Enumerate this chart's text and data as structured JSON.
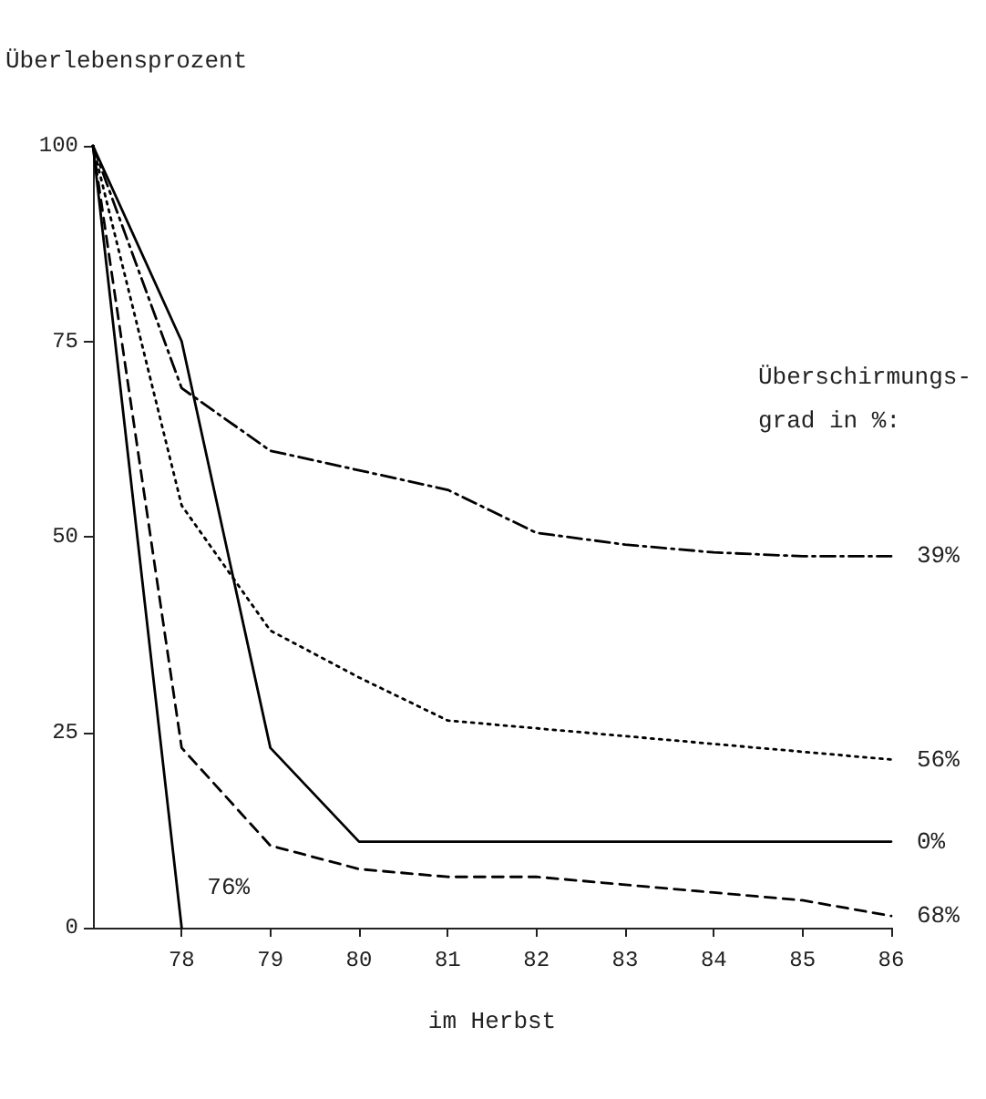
{
  "chart_data": {
    "type": "line",
    "ylabel": "Überlebensprozent",
    "xlabel": "im Herbst",
    "legend_title": "Überschirmungs-\ngrad in %:",
    "x": [
      77,
      78,
      79,
      80,
      81,
      82,
      83,
      84,
      85,
      86
    ],
    "series": [
      {
        "name": "39%",
        "color": "#000000",
        "line_style": "dashdot",
        "values": [
          100,
          69,
          61,
          58.5,
          56,
          50.5,
          49,
          48,
          47.5,
          47.5
        ]
      },
      {
        "name": "56%",
        "color": "#000000",
        "line_style": "dotted",
        "values": [
          100,
          54,
          38,
          32,
          26.5,
          25.5,
          24.5,
          23.5,
          22.5,
          21.5
        ]
      },
      {
        "name": "0%",
        "color": "#000000",
        "line_style": "solid",
        "values": [
          100,
          75,
          23,
          11,
          11,
          11,
          11,
          11,
          11,
          11
        ]
      },
      {
        "name": "68%",
        "color": "#000000",
        "line_style": "dashed",
        "values": [
          100,
          23,
          10.5,
          7.5,
          6.5,
          6.5,
          5.5,
          4.5,
          3.5,
          1.5
        ]
      },
      {
        "name": "76%",
        "color": "#000000",
        "line_style": "solid",
        "x": [
          77,
          78
        ],
        "values": [
          100,
          0
        ]
      }
    ],
    "xlim": [
      77,
      86
    ],
    "xticks": [
      78,
      79,
      80,
      81,
      82,
      83,
      84,
      85,
      86
    ],
    "ylim": [
      0,
      100
    ],
    "yticks": [
      0,
      25,
      50,
      75,
      100
    ],
    "grid": false,
    "legend": false,
    "marker": "none"
  }
}
